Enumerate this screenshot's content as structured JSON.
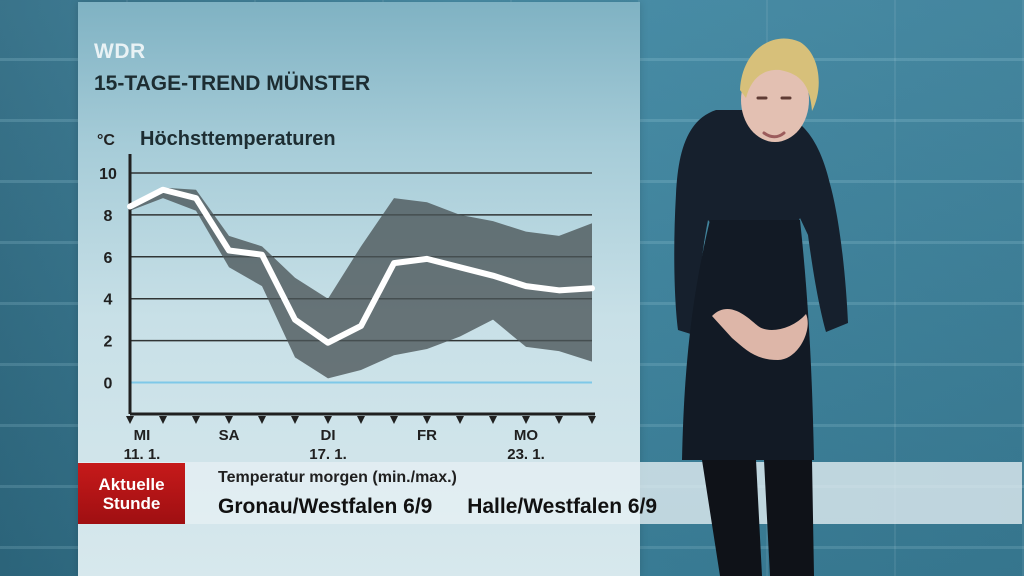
{
  "broadcast": {
    "channel": "WDR",
    "title": "15-TAGE-TREND MÜNSTER"
  },
  "ticker": {
    "brand_line1": "Aktuelle",
    "brand_line2": "Stunde",
    "heading": "Temperatur morgen (min./max.)",
    "items": [
      "Gronau/Westfalen 6/9",
      "Halle/Westfalen 6/9"
    ]
  },
  "chart_data": {
    "type": "line",
    "title": "Höchsttemperaturen",
    "ylabel": "°C",
    "ylim": [
      -1.5,
      11
    ],
    "yticks": [
      0,
      2,
      4,
      6,
      8,
      10
    ],
    "x_days": 15,
    "x_labels": [
      {
        "index": 0,
        "line1": "MI",
        "line2": "11. 1."
      },
      {
        "index": 3,
        "line1": "SA",
        "line2": ""
      },
      {
        "index": 6,
        "line1": "DI",
        "line2": "17. 1."
      },
      {
        "index": 9,
        "line1": "FR",
        "line2": ""
      },
      {
        "index": 12,
        "line1": "MO",
        "line2": "23. 1."
      }
    ],
    "series": [
      {
        "values": [
          8.4,
          9.2,
          8.8,
          6.3,
          6.1,
          3.0,
          1.9,
          2.7,
          5.7,
          5.9,
          5.5,
          5.1,
          4.6,
          4.4,
          4.5
        ],
        "color": "#ffffff"
      }
    ],
    "band": {
      "upper": [
        8.4,
        9.3,
        9.2,
        7.0,
        6.5,
        5.0,
        4.0,
        6.5,
        8.8,
        8.6,
        8.0,
        7.7,
        7.2,
        7.0,
        7.6
      ],
      "lower": [
        8.2,
        8.8,
        8.2,
        5.5,
        4.6,
        1.2,
        0.2,
        0.6,
        1.3,
        1.6,
        2.2,
        3.0,
        1.7,
        1.5,
        1.0
      ],
      "color": "#4b5558"
    },
    "zero_line_color": "#7ec8e8"
  }
}
